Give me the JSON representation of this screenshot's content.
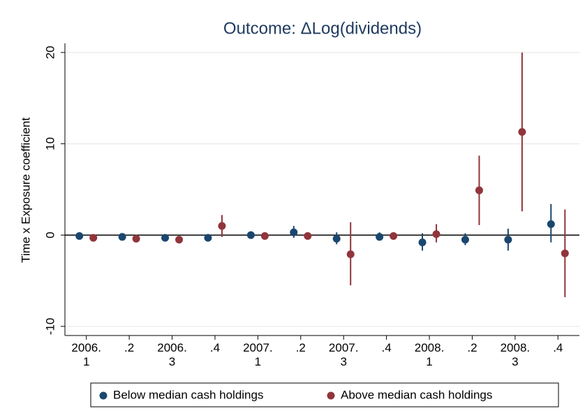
{
  "chart_data": {
    "type": "errorbar",
    "title": "Outcome: ΔLog(dividends)",
    "y_label": "Time x Exposure coefficient",
    "categories": [
      "2006.\n1",
      ".2",
      "2006.\n3",
      ".4",
      "2007.\n1",
      ".2",
      "2007.\n3",
      ".4",
      "2008.\n1",
      ".2",
      "2008.\n3",
      ".4"
    ],
    "ylim": [
      -11,
      21
    ],
    "yticks": [
      -10,
      0,
      10,
      20
    ],
    "grid": true,
    "legend_position": "bottom",
    "series": [
      {
        "name": "Below median cash holdings",
        "color": "#1a476f",
        "values": [
          -0.1,
          -0.2,
          -0.3,
          -0.3,
          0.0,
          0.3,
          -0.4,
          -0.2,
          -0.8,
          -0.5,
          -0.5,
          1.2
        ],
        "lower": [
          -0.3,
          -0.4,
          -0.5,
          -0.5,
          -0.2,
          -0.3,
          -1.0,
          -0.6,
          -1.7,
          -1.1,
          -1.7,
          -0.8
        ],
        "upper": [
          0.1,
          0.0,
          -0.1,
          -0.1,
          0.2,
          1.0,
          0.3,
          0.3,
          0.2,
          0.2,
          0.7,
          3.4
        ]
      },
      {
        "name": "Above median cash holdings",
        "color": "#90353b",
        "values": [
          -0.3,
          -0.4,
          -0.5,
          1.0,
          -0.1,
          -0.1,
          -2.1,
          -0.1,
          0.1,
          4.9,
          11.3,
          -2.0
        ],
        "lower": [
          -0.5,
          -0.6,
          -0.7,
          -0.2,
          -0.3,
          -0.3,
          -5.5,
          -0.3,
          -0.8,
          1.1,
          2.6,
          -6.8
        ],
        "upper": [
          -0.1,
          -0.2,
          -0.3,
          2.2,
          0.1,
          0.1,
          1.4,
          0.1,
          1.2,
          8.7,
          20,
          2.8
        ]
      }
    ]
  }
}
